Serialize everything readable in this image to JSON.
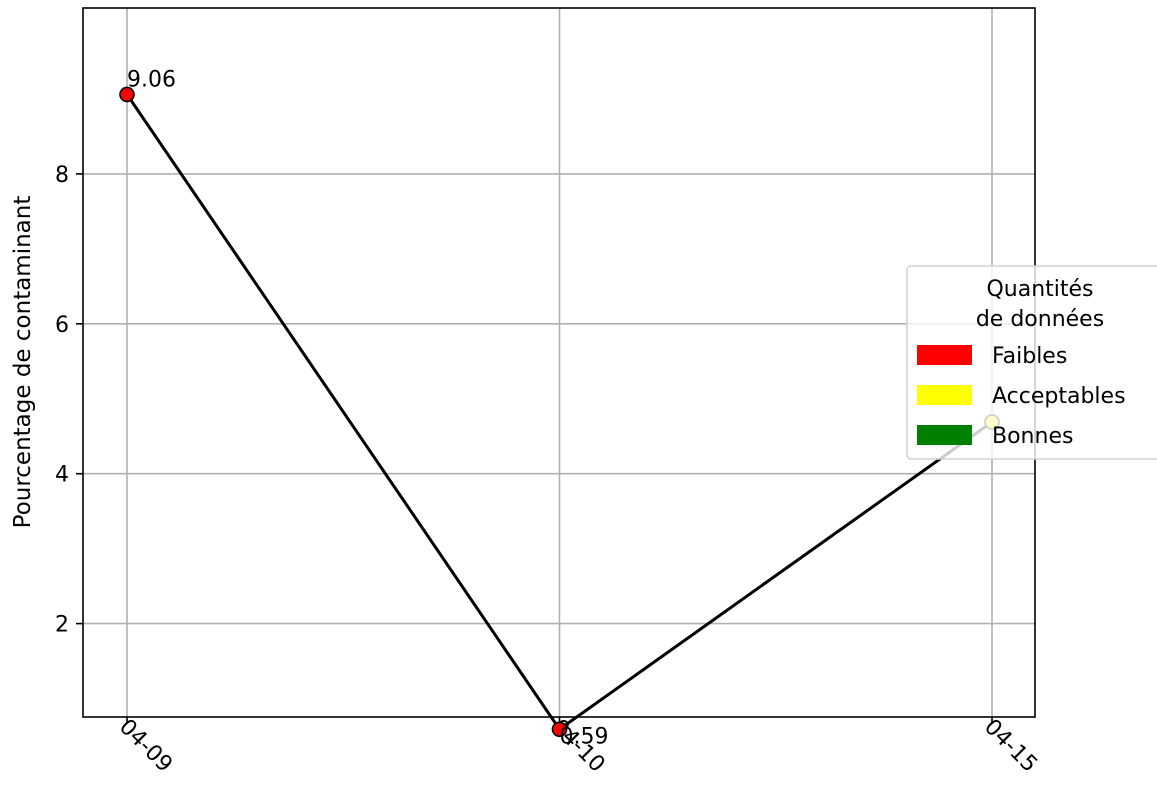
{
  "chart_data": {
    "type": "line",
    "title": "",
    "xlabel": "",
    "ylabel": "Pourcentage de contaminant",
    "categories": [
      "04-09",
      "04-10",
      "04-15"
    ],
    "ylim": [
      0.0,
      9.5
    ],
    "yticks": [
      2,
      4,
      6,
      8
    ],
    "grid": true,
    "series": [
      {
        "values": [
          9.06,
          0.59,
          4.69
        ],
        "line_color": "#000000",
        "point_colors": [
          "#ff0000",
          "#ff0000",
          "#ffff00"
        ],
        "point_labels": [
          "9.06",
          "0.59",
          ""
        ]
      }
    ],
    "legend": {
      "title": "Quantités\nde données",
      "placement": "right",
      "entries": [
        {
          "label": "Faibles",
          "color": "#ff0000"
        },
        {
          "label": "Acceptables",
          "color": "#ffff00"
        },
        {
          "label": "Bonnes",
          "color": "#008000"
        }
      ]
    }
  }
}
